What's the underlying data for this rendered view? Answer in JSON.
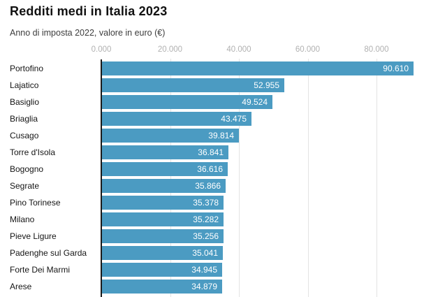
{
  "header": {
    "title": "Redditi medi in Italia 2023",
    "subtitle": "Anno di imposta 2022, valore in euro (€)"
  },
  "chart_data": {
    "type": "bar",
    "orientation": "horizontal",
    "title": "Redditi medi in Italia 2023",
    "subtitle": "Anno di imposta 2022, valore in euro (€)",
    "categories": [
      "Portofino",
      "Lajatico",
      "Basiglio",
      "Briaglia",
      "Cusago",
      "Torre d'Isola",
      "Bogogno",
      "Segrate",
      "Pino Torinese",
      "Milano",
      "Pieve Ligure",
      "Padenghe sul Garda",
      "Forte Dei Marmi",
      "Arese"
    ],
    "values": [
      90610,
      52955,
      49524,
      43475,
      39814,
      36841,
      36616,
      35866,
      35378,
      35282,
      35256,
      35041,
      34945,
      34879
    ],
    "value_labels": [
      "90.610",
      "52.955",
      "49.524",
      "43.475",
      "39.814",
      "36.841",
      "36.616",
      "35.866",
      "35.378",
      "35.282",
      "35.256",
      "35.041",
      "34.945",
      "34.879"
    ],
    "x_ticks": {
      "values": [
        0,
        20000,
        40000,
        60000,
        80000
      ],
      "labels": [
        "0.000",
        "20.000",
        "40.000",
        "60.000",
        "80.000"
      ]
    },
    "xlim": [
      0,
      95800
    ],
    "grid": "vertical",
    "legend": "none",
    "colors": {
      "bar": "#4b9bc2",
      "grid": "#e3e3e3",
      "zero_axis": "#1a1a1a",
      "tick_label": "#b1b1b1",
      "title": "#111111",
      "subtitle": "#3d3d3d",
      "category_label": "#151515",
      "value_label": "#ffffff",
      "background": "#ffffff"
    }
  }
}
